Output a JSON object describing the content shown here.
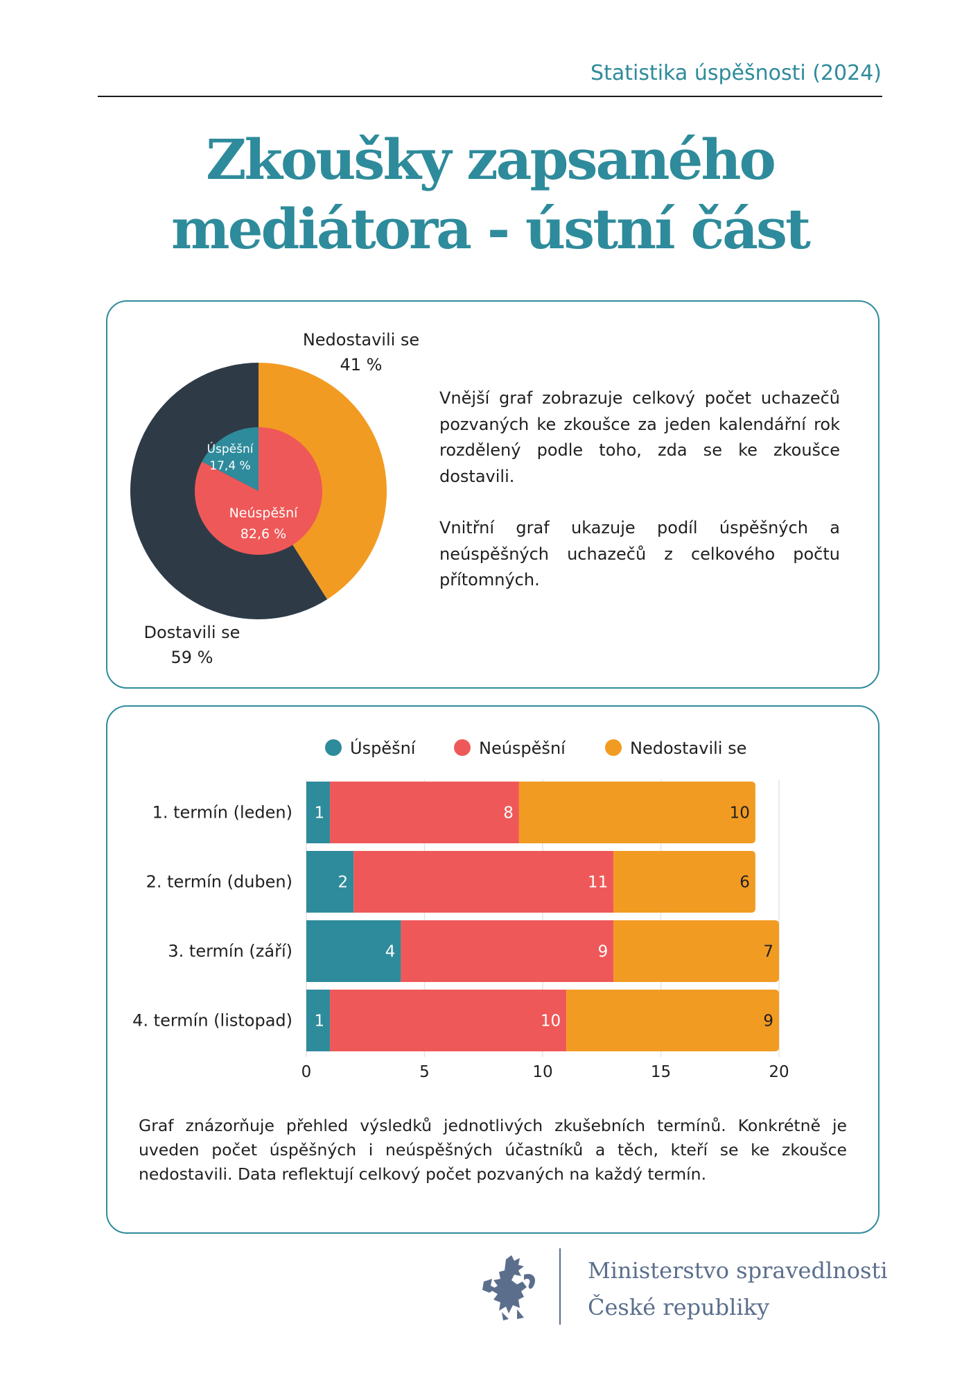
{
  "header": {
    "label": "Statistika úspěšnosti (2024)"
  },
  "title": {
    "line1": "Zkoušky zapsaného",
    "line2": "mediátora - ústní část"
  },
  "colors": {
    "teal": "#2e8b9b",
    "red": "#ef5858",
    "orange": "#f29b22",
    "navy": "#2e3b47",
    "footer": "#5b6e8c"
  },
  "pie_section": {
    "description_1": "Vnější graf zobrazuje celkový počet uchazečů pozvaných ke zkoušce za jeden kalendářní rok rozdělený podle toho, zda se ke zkoušce dostavili.",
    "description_2": "Vnitřní graf ukazuje podíl úspěšných a neúspěšných uchazečů z celkového počtu přítomných."
  },
  "bar_section": {
    "description": "Graf znázorňuje přehled výsledků jednotlivých zkušebních termínů. Konkrétně je uveden počet úspěšných i neúspěšných účastníků a těch, kteří se ke zkoušce nedostavili. Data reflektují celkový počet pozvaných na každý termín."
  },
  "chart_data": [
    {
      "type": "pie",
      "ring": "outer",
      "labels": [
        "Nedostavili se",
        "Dostavili se"
      ],
      "values": [
        41,
        59
      ],
      "value_labels": [
        "41 %",
        "59 %"
      ],
      "colors": [
        "#f29b22",
        "#2e3b47"
      ]
    },
    {
      "type": "pie",
      "ring": "inner",
      "labels": [
        "Úspěšní",
        "Neúspěšní"
      ],
      "values": [
        17.4,
        82.6
      ],
      "value_labels": [
        "17,4 %",
        "82,6 %"
      ],
      "colors": [
        "#2e8b9b",
        "#ef5858"
      ]
    },
    {
      "type": "bar",
      "orientation": "horizontal",
      "stacked": true,
      "categories": [
        "1. termín (leden)",
        "2. termín (duben)",
        "3. termín (září)",
        "4. termín (listopad)"
      ],
      "series": [
        {
          "name": "Úspěšní",
          "values": [
            1,
            2,
            4,
            1
          ],
          "color": "#2e8b9b"
        },
        {
          "name": "Neúspěšní",
          "values": [
            8,
            11,
            9,
            10
          ],
          "color": "#ef5858"
        },
        {
          "name": "Nedostavili se",
          "values": [
            10,
            6,
            7,
            9
          ],
          "color": "#f29b22"
        }
      ],
      "xlim": [
        0,
        20
      ],
      "xticks": [
        0,
        5,
        10,
        15,
        20
      ],
      "grid": "vertical",
      "legend": "top"
    }
  ],
  "footer": {
    "ministry_line1": "Ministerstvo spravedlnosti",
    "ministry_line2": "České republiky"
  }
}
